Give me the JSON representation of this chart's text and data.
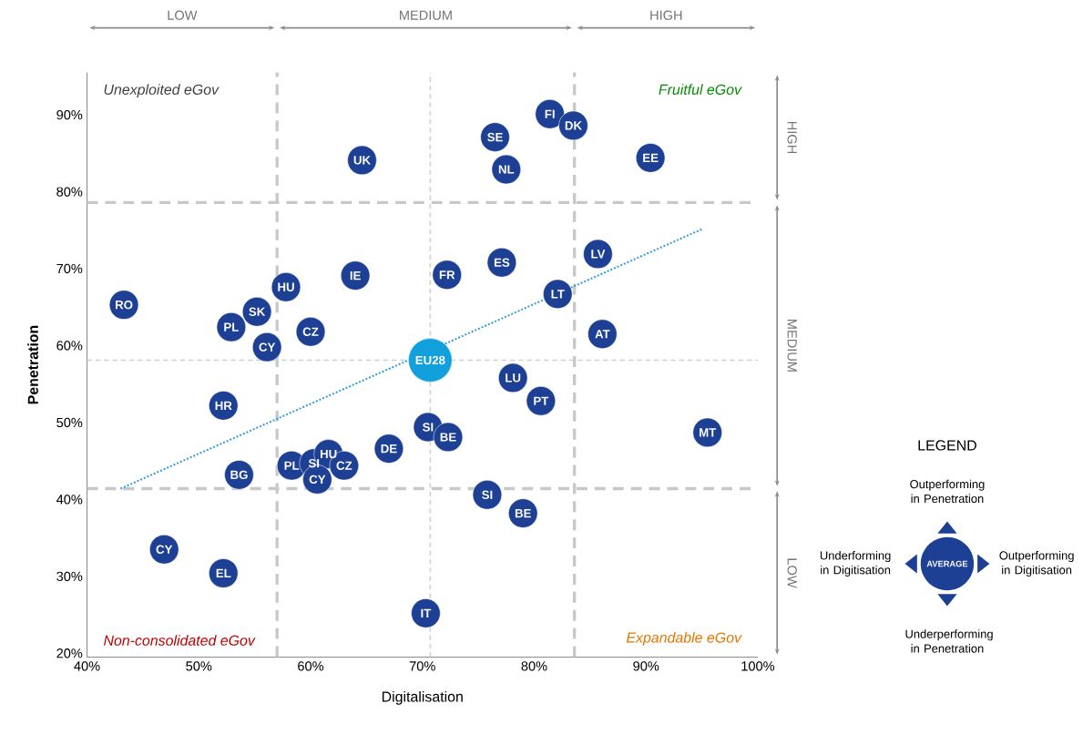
{
  "chart_data": {
    "type": "scatter",
    "xlabel": "Digitalisation",
    "ylabel": "Penetration",
    "xlim": [
      40,
      100
    ],
    "ylim": [
      19.5,
      95.5
    ],
    "xticks": [
      {
        "value": 40,
        "label": "40%"
      },
      {
        "value": 50,
        "label": "50%"
      },
      {
        "value": 60,
        "label": "60%"
      },
      {
        "value": 70,
        "label": "70%"
      },
      {
        "value": 80,
        "label": "80%"
      },
      {
        "value": 90,
        "label": "90%"
      },
      {
        "value": 100,
        "label": "100%"
      }
    ],
    "yticks": [
      {
        "value": 20,
        "label": "20%"
      },
      {
        "value": 30,
        "label": "30%"
      },
      {
        "value": 40,
        "label": "40%"
      },
      {
        "value": 50,
        "label": "50%"
      },
      {
        "value": 60,
        "label": "60%"
      },
      {
        "value": 70,
        "label": "70%"
      },
      {
        "value": 80,
        "label": "80%"
      },
      {
        "value": 90,
        "label": "90%"
      }
    ],
    "series": [
      {
        "color": "#1d3f94",
        "marker": "circle",
        "x": [
          43.3,
          64.6,
          81.4,
          83.5,
          76.5,
          77.5,
          90.4,
          57.8,
          55.2,
          52.9,
          56.1,
          60.0,
          64.0,
          72.2,
          77.1,
          85.7,
          82.1,
          86.1,
          78.1,
          80.6,
          52.2,
          95.5,
          70.5,
          72.3,
          67.0,
          53.6,
          58.3,
          60.3,
          61.6,
          60.6,
          63.0,
          75.8,
          79.0,
          46.9,
          52.2,
          70.3
        ],
        "values": [
          65.3,
          84.1,
          90.1,
          88.6,
          87.1,
          82.9,
          84.4,
          67.6,
          64.4,
          62.4,
          59.8,
          61.8,
          69.1,
          69.2,
          70.8,
          71.9,
          66.7,
          61.5,
          55.8,
          52.8,
          52.2,
          48.7,
          49.4,
          48.1,
          46.6,
          43.2,
          44.4,
          44.7,
          45.9,
          42.6,
          44.4,
          40.6,
          38.2,
          33.5,
          30.4,
          25.2
        ],
        "value_labels": [
          "RO",
          "UK",
          "FI",
          "DK",
          "SE",
          "NL",
          "EE",
          "HU",
          "SK",
          "PL",
          "CY",
          "CZ",
          "IE",
          "FR",
          "ES",
          "LV",
          "LT",
          "AT",
          "LU",
          "PT",
          "HR",
          "MT",
          "SI",
          "BE",
          "DE",
          "BG",
          "PL",
          "SI",
          "HU",
          "CY",
          "CZ",
          "SI",
          "BE",
          "CY",
          "EL",
          "IT"
        ]
      },
      {
        "color": "#12a0dc",
        "marker": "circle",
        "x": [
          70.7
        ],
        "values": [
          58.1
        ],
        "value_labels": [
          "EU28"
        ]
      },
      {
        "type": "line",
        "color": "#2e9be0",
        "line_style": "dotted",
        "marker": "none",
        "x": [
          43.0,
          95.1
        ],
        "values": [
          41.4,
          75.2
        ]
      }
    ],
    "ref_lines": [
      {
        "axis": "x",
        "value": 57.0,
        "color": "#c8c8c8",
        "line_style": "dashed"
      },
      {
        "axis": "x",
        "value": 83.6,
        "color": "#c8c8c8",
        "line_style": "dashed"
      },
      {
        "axis": "y",
        "value": 41.4,
        "color": "#c8c8c8",
        "line_style": "dashed"
      },
      {
        "axis": "y",
        "value": 78.6,
        "color": "#c8c8c8",
        "line_style": "dashed"
      },
      {
        "axis": "x",
        "value": 70.7,
        "color": "#d0d0d0",
        "line_style": "dotted"
      },
      {
        "axis": "y",
        "value": 58.1,
        "color": "#d0d0d0",
        "line_style": "dotted"
      }
    ],
    "annotations": [
      "Unexploited eGov",
      "Fruitful eGov",
      "Non-consolidated eGov",
      "Expandable eGov",
      "LEGEND",
      "Outperforming in Penetration",
      "Underforming in Digitisation",
      "Outperforming in Digitisation",
      "Underperforming in Penetration",
      "AVERAGE",
      "LOW",
      "MEDIUM",
      "HIGH",
      "LOW",
      "MEDIUM",
      "HIGH"
    ]
  }
}
